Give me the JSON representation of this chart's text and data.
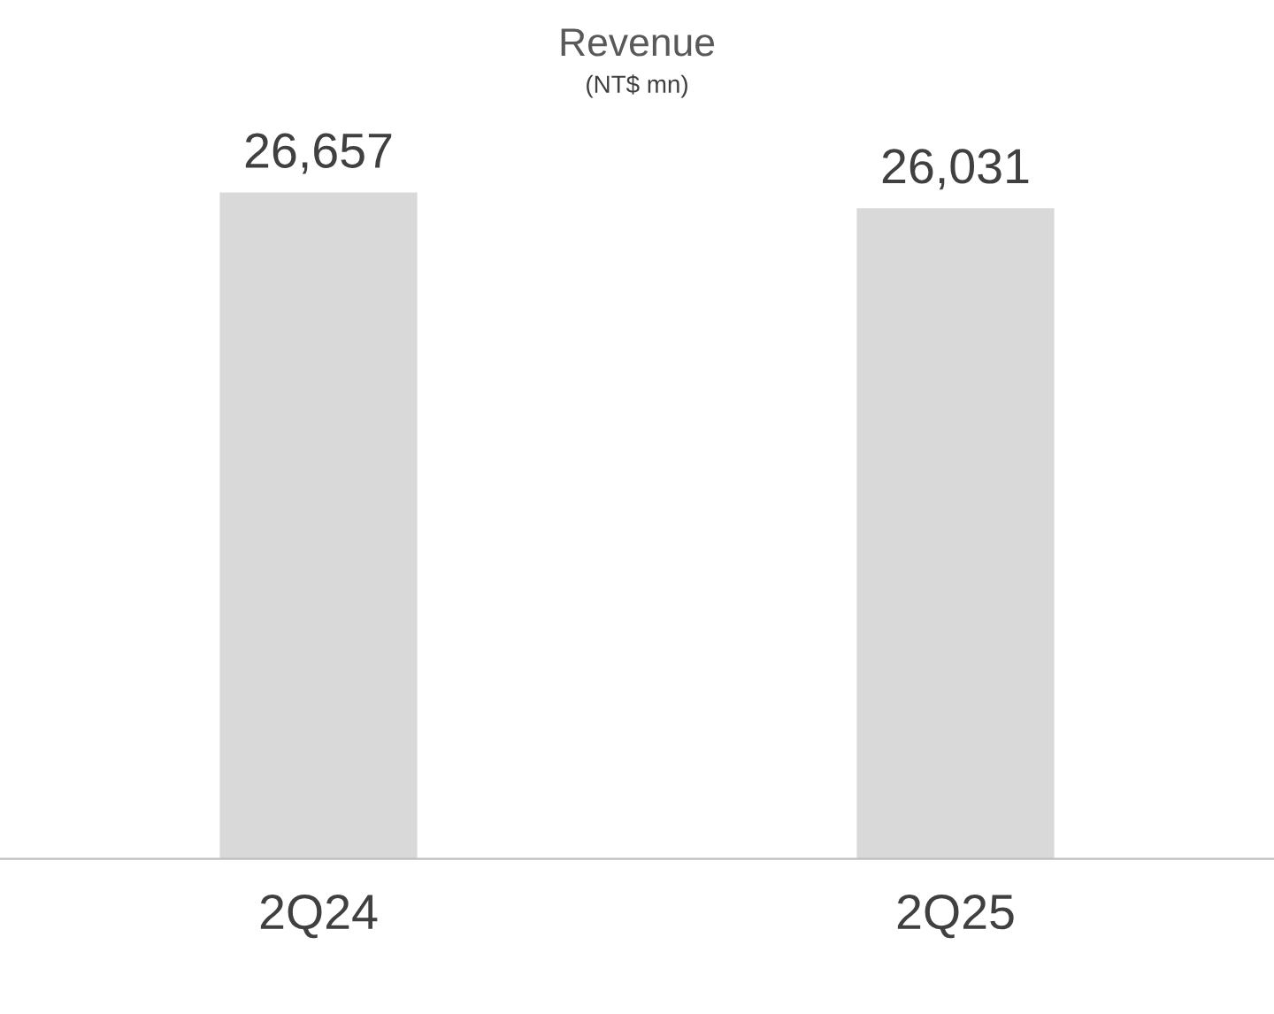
{
  "chart_data": {
    "type": "bar",
    "title": "Revenue",
    "subtitle": "(NT$ mn)",
    "categories": [
      "2Q24",
      "2Q25"
    ],
    "values": [
      26657,
      26031
    ],
    "color": "#d9d9d9",
    "value_labels": [
      "26,657",
      "26,031"
    ],
    "grid": false,
    "legend": false
  }
}
